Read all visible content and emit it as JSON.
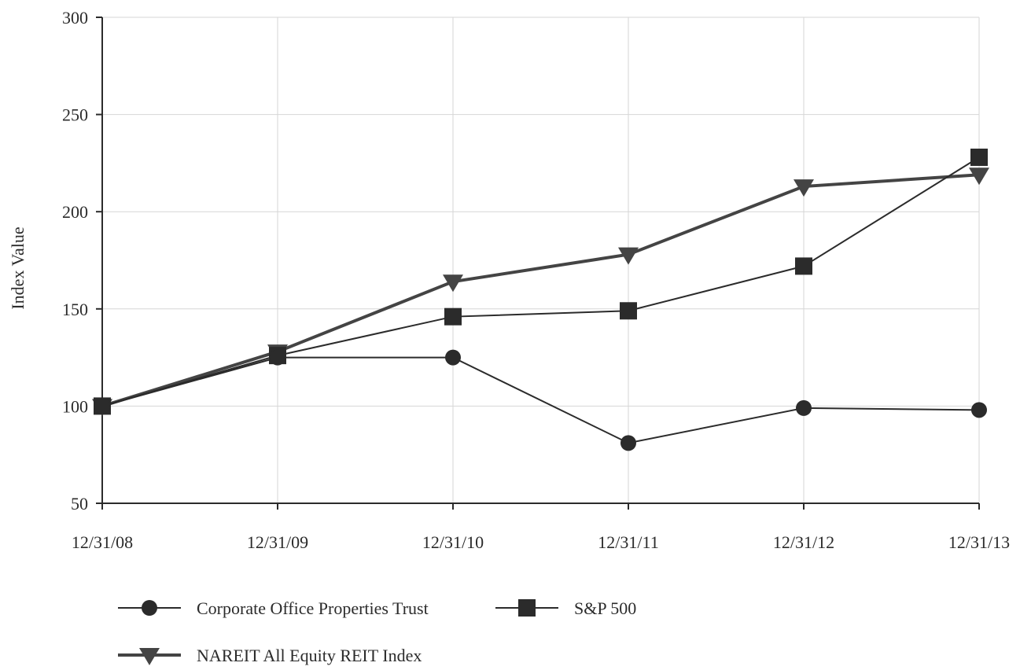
{
  "chart_data": {
    "type": "line",
    "title": "",
    "xlabel": "",
    "ylabel": "Index Value",
    "ylim": [
      50,
      300
    ],
    "yticks": [
      50,
      100,
      150,
      200,
      250,
      300
    ],
    "categories": [
      "12/31/08",
      "12/31/09",
      "12/31/10",
      "12/31/11",
      "12/31/12",
      "12/31/13"
    ],
    "grid": true,
    "legend_position": "bottom",
    "series": [
      {
        "name": "Corporate Office Properties Trust",
        "marker": "circle",
        "color": "#2b2b2b",
        "values": [
          100,
          125,
          125,
          81,
          99,
          98
        ]
      },
      {
        "name": "S&P 500",
        "marker": "square",
        "color": "#2b2b2b",
        "values": [
          100,
          126,
          146,
          149,
          172,
          228
        ]
      },
      {
        "name": "NAREIT All Equity REIT Index",
        "marker": "triangle-down",
        "color": "#444444",
        "values": [
          100,
          128,
          164,
          178,
          213,
          219
        ]
      }
    ]
  }
}
